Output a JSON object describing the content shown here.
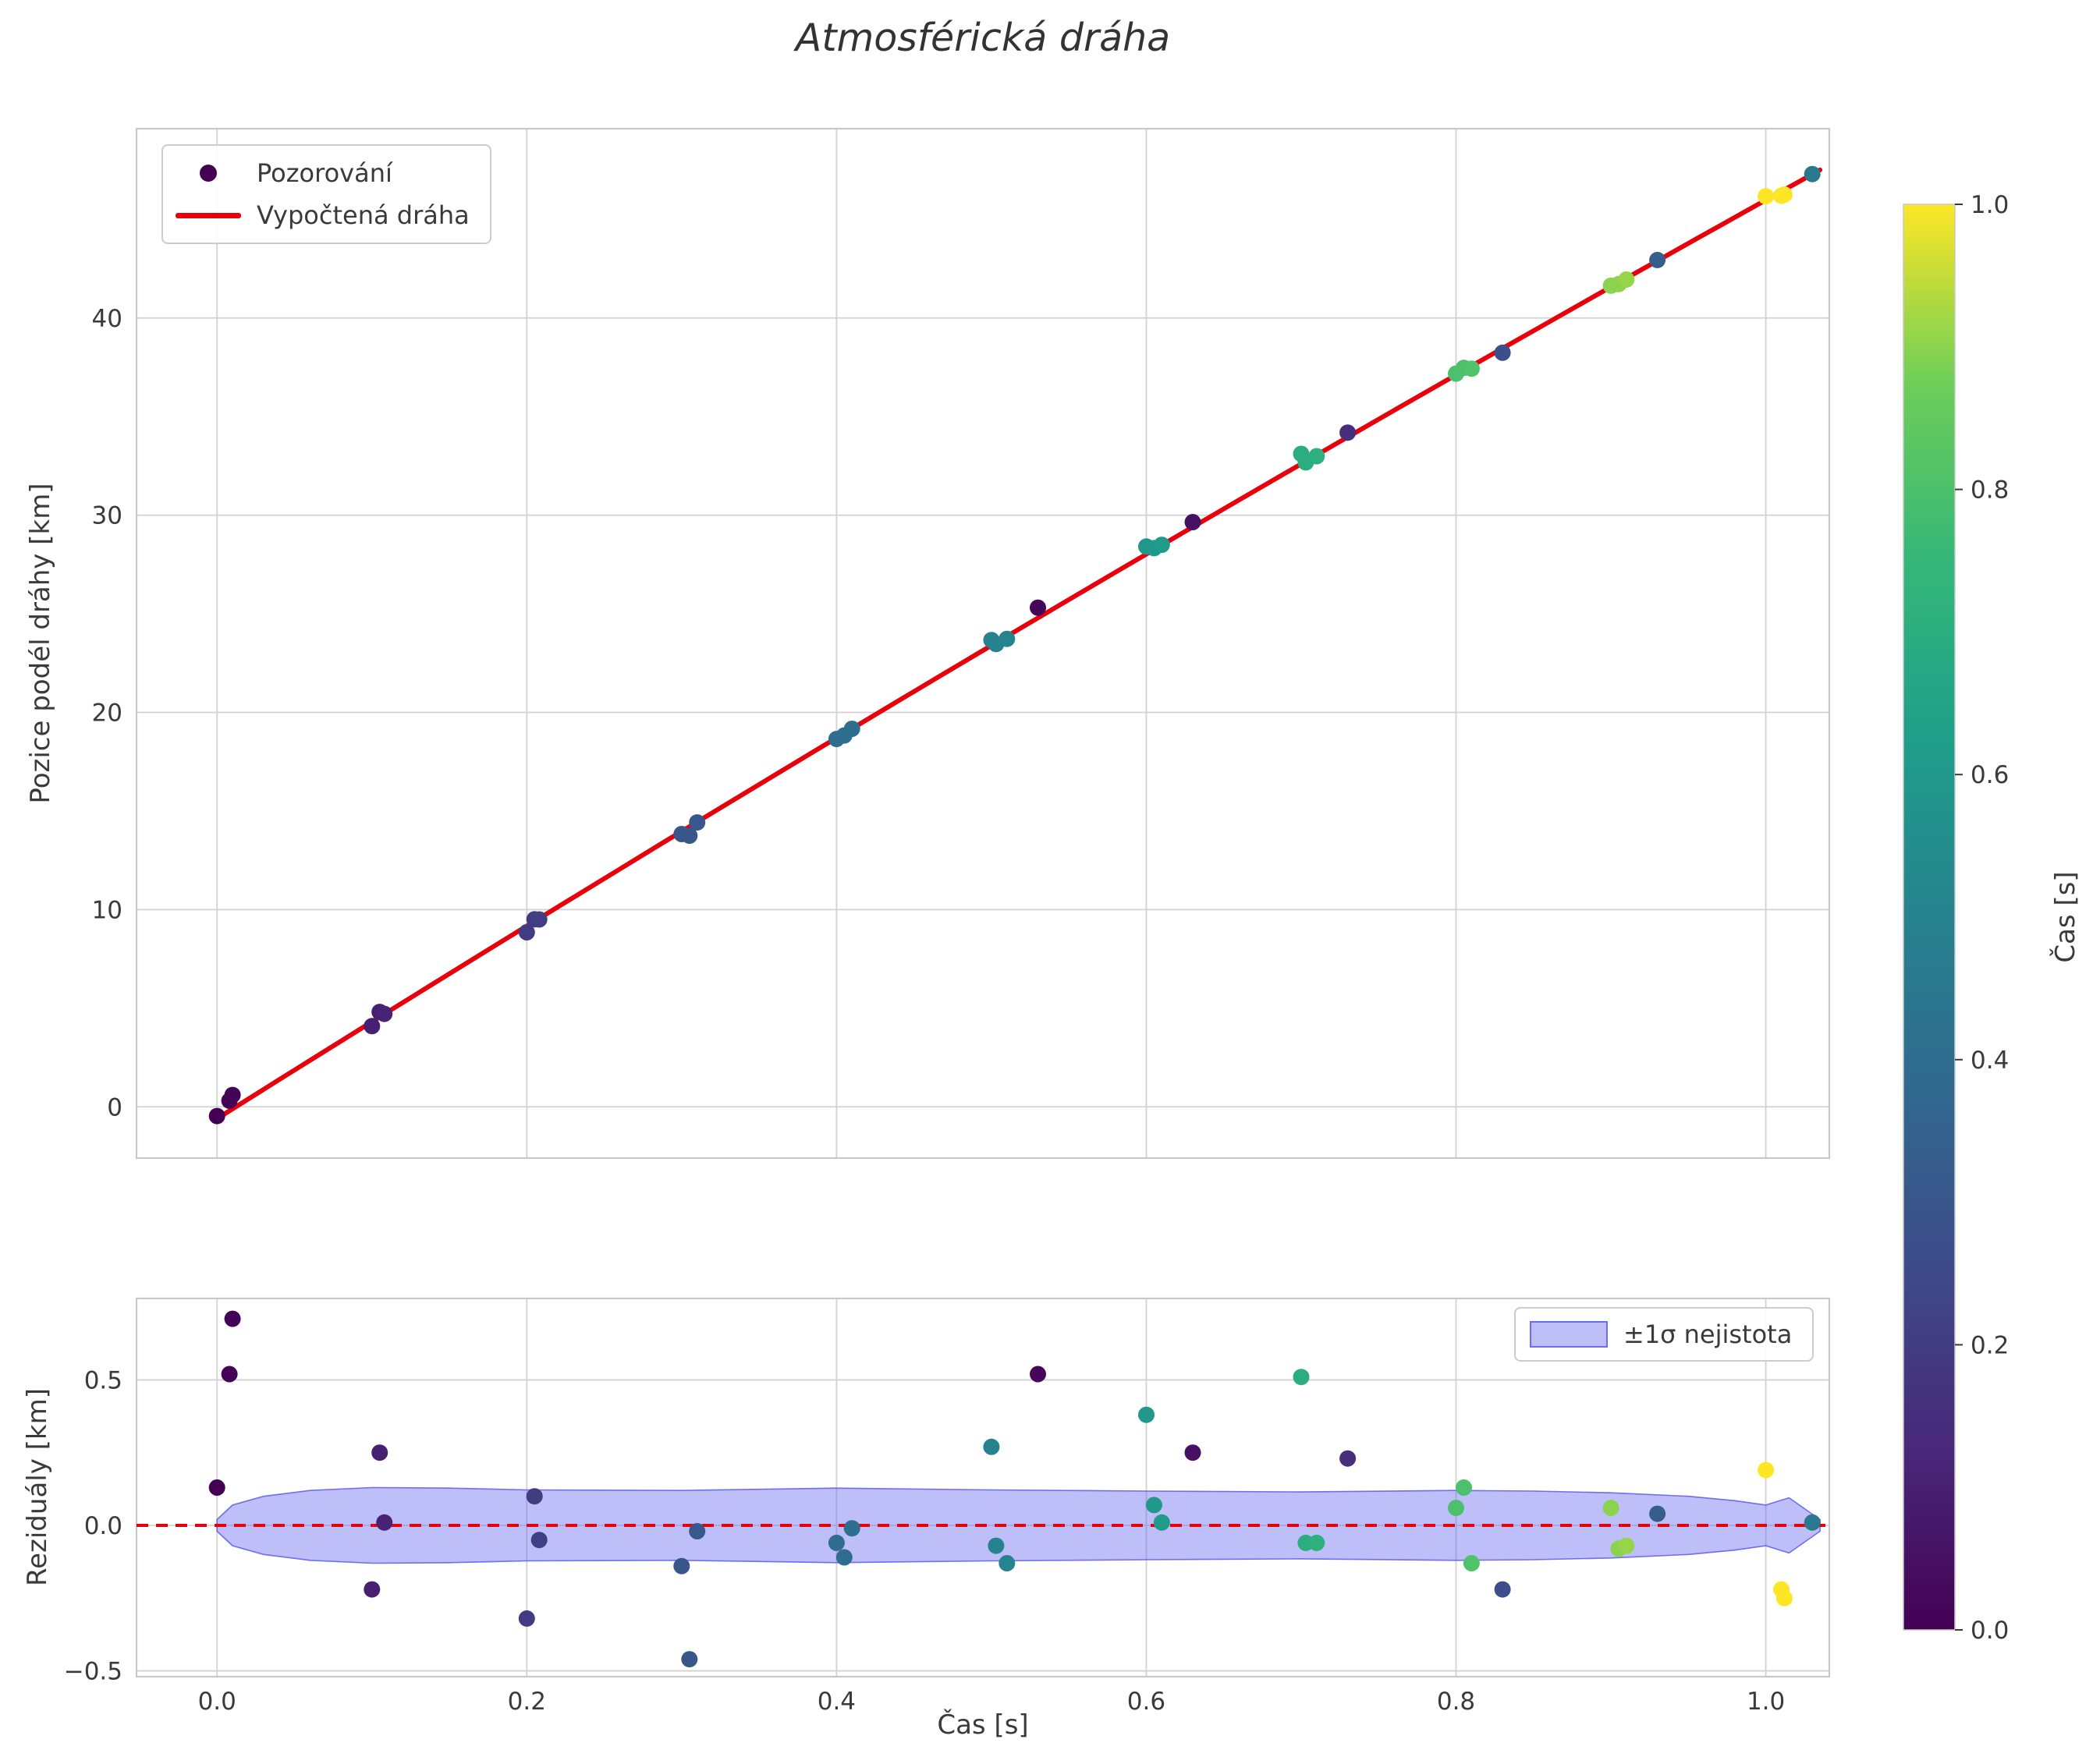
{
  "figure": {
    "background": "#ffffff"
  },
  "colors": {
    "line": "#e8000b",
    "grid": "#d2d2d2",
    "spine": "#c8c8c8",
    "text": "#3a3a3a",
    "band_fill": "rgba(99,99,240,0.42)",
    "band_edge": "rgba(99,99,240,0.9)",
    "legend_marker": "#440154",
    "viridis": [
      [
        68,
        1,
        84
      ],
      [
        72,
        40,
        120
      ],
      [
        62,
        74,
        137
      ],
      [
        49,
        104,
        142
      ],
      [
        38,
        130,
        142
      ],
      [
        31,
        158,
        137
      ],
      [
        53,
        183,
        121
      ],
      [
        110,
        206,
        88
      ],
      [
        253,
        231,
        37
      ]
    ]
  },
  "chart_data": [
    {
      "type": "scatter",
      "title": "Atmosférická dráha",
      "xlabel": "",
      "ylabel": "Pozice podél dráhy [km]",
      "xlim": [
        -0.052,
        1.041
      ],
      "ylim": [
        -2.6,
        49.6
      ],
      "grid": true,
      "xticks": {
        "values": [
          0.0,
          0.2,
          0.4,
          0.6,
          0.8,
          1.0
        ],
        "labels": [
          "",
          "",
          "",
          "",
          "",
          ""
        ]
      },
      "yticks": {
        "values": [
          0,
          10,
          20,
          30,
          40
        ],
        "labels": [
          "0",
          "10",
          "20",
          "30",
          "40"
        ]
      },
      "legend": [
        {
          "label": "Pozorování",
          "type": "marker"
        },
        {
          "label": "Vypočtená dráha",
          "type": "line"
        }
      ],
      "fit_line": {
        "name": "Vypočtená dráha",
        "model": "quadratic",
        "coeffs": [
          -0.6,
          49.4,
          -2.82
        ],
        "t_min": 0.0,
        "t_max": 1.035
      },
      "observations": [
        {
          "t": 0.0,
          "pos": -0.47,
          "resid": 0.13,
          "c": 0.0
        },
        {
          "t": 0.008,
          "pos": 0.31,
          "resid": 0.52,
          "c": 0.01
        },
        {
          "t": 0.01,
          "pos": 0.6,
          "resid": 0.71,
          "c": 0.01
        },
        {
          "t": 0.1,
          "pos": 4.09,
          "resid": -0.22,
          "c": 0.1
        },
        {
          "t": 0.105,
          "pos": 4.81,
          "resid": 0.25,
          "c": 0.1
        },
        {
          "t": 0.108,
          "pos": 4.71,
          "resid": 0.01,
          "c": 0.11
        },
        {
          "t": 0.2,
          "pos": 8.85,
          "resid": -0.32,
          "c": 0.2
        },
        {
          "t": 0.205,
          "pos": 9.51,
          "resid": 0.1,
          "c": 0.2
        },
        {
          "t": 0.208,
          "pos": 9.5,
          "resid": -0.05,
          "c": 0.21
        },
        {
          "t": 0.3,
          "pos": 13.83,
          "resid": -0.14,
          "c": 0.3
        },
        {
          "t": 0.305,
          "pos": 13.75,
          "resid": -0.46,
          "c": 0.3
        },
        {
          "t": 0.31,
          "pos": 14.42,
          "resid": -0.02,
          "c": 0.31
        },
        {
          "t": 0.4,
          "pos": 18.65,
          "resid": -0.06,
          "c": 0.4
        },
        {
          "t": 0.405,
          "pos": 18.83,
          "resid": -0.11,
          "c": 0.4
        },
        {
          "t": 0.41,
          "pos": 19.17,
          "resid": -0.01,
          "c": 0.41
        },
        {
          "t": 0.5,
          "pos": 23.67,
          "resid": 0.27,
          "c": 0.5
        },
        {
          "t": 0.503,
          "pos": 23.47,
          "resid": -0.07,
          "c": 0.5
        },
        {
          "t": 0.51,
          "pos": 23.73,
          "resid": -0.13,
          "c": 0.51
        },
        {
          "t": 0.53,
          "pos": 25.31,
          "resid": 0.52,
          "c": 0.02
        },
        {
          "t": 0.6,
          "pos": 28.41,
          "resid": 0.38,
          "c": 0.6
        },
        {
          "t": 0.605,
          "pos": 28.33,
          "resid": 0.07,
          "c": 0.6
        },
        {
          "t": 0.61,
          "pos": 28.5,
          "resid": 0.01,
          "c": 0.61
        },
        {
          "t": 0.63,
          "pos": 29.65,
          "resid": 0.25,
          "c": 0.05
        },
        {
          "t": 0.7,
          "pos": 33.11,
          "resid": 0.51,
          "c": 0.7
        },
        {
          "t": 0.703,
          "pos": 32.68,
          "resid": -0.06,
          "c": 0.7
        },
        {
          "t": 0.71,
          "pos": 32.99,
          "resid": -0.06,
          "c": 0.71
        },
        {
          "t": 0.73,
          "pos": 34.19,
          "resid": 0.23,
          "c": 0.15
        },
        {
          "t": 0.8,
          "pos": 37.18,
          "resid": 0.06,
          "c": 0.8
        },
        {
          "t": 0.805,
          "pos": 37.47,
          "resid": 0.13,
          "c": 0.8
        },
        {
          "t": 0.81,
          "pos": 37.43,
          "resid": -0.13,
          "c": 0.81
        },
        {
          "t": 0.83,
          "pos": 38.24,
          "resid": -0.22,
          "c": 0.27
        },
        {
          "t": 0.9,
          "pos": 41.64,
          "resid": 0.06,
          "c": 0.9
        },
        {
          "t": 0.905,
          "pos": 41.72,
          "resid": -0.08,
          "c": 0.9
        },
        {
          "t": 0.91,
          "pos": 41.95,
          "resid": -0.07,
          "c": 0.91
        },
        {
          "t": 0.93,
          "pos": 42.94,
          "resid": 0.04,
          "c": 0.33
        },
        {
          "t": 1.0,
          "pos": 46.17,
          "resid": 0.19,
          "c": 1.0
        },
        {
          "t": 1.01,
          "pos": 46.2,
          "resid": -0.22,
          "c": 1.0
        },
        {
          "t": 1.012,
          "pos": 46.26,
          "resid": -0.25,
          "c": 1.0
        },
        {
          "t": 1.03,
          "pos": 47.3,
          "resid": 0.01,
          "c": 0.45
        }
      ]
    },
    {
      "type": "scatter",
      "title": "",
      "xlabel": "Čas [s]",
      "ylabel": "Reziduály [km]",
      "xlim": [
        -0.052,
        1.041
      ],
      "ylim": [
        -0.52,
        0.78
      ],
      "grid": true,
      "xticks": {
        "values": [
          0.0,
          0.2,
          0.4,
          0.6,
          0.8,
          1.0
        ],
        "labels": [
          "0.0",
          "0.2",
          "0.4",
          "0.6",
          "0.8",
          "1.0"
        ]
      },
      "yticks": {
        "values": [
          -0.5,
          0.0,
          0.5
        ],
        "labels": [
          "−0.5",
          "0.0",
          "0.5"
        ]
      },
      "legend": [
        {
          "label": "±1σ nejistota",
          "type": "patch"
        }
      ],
      "zero_line": 0.0,
      "residuals_from": "chart_data[0].observations",
      "band": {
        "t": [
          0.0,
          0.01,
          0.03,
          0.06,
          0.1,
          0.15,
          0.2,
          0.3,
          0.4,
          0.5,
          0.6,
          0.7,
          0.8,
          0.85,
          0.9,
          0.95,
          0.98,
          1.0,
          1.015,
          1.035
        ],
        "sigma": [
          0.02,
          0.07,
          0.1,
          0.12,
          0.13,
          0.128,
          0.122,
          0.12,
          0.128,
          0.122,
          0.118,
          0.115,
          0.12,
          0.118,
          0.112,
          0.1,
          0.085,
          0.07,
          0.095,
          0.02
        ]
      }
    }
  ],
  "colorbar": {
    "label": "Čas [s]",
    "vmin": 0.0,
    "vmax": 1.0,
    "ticks": {
      "values": [
        0.0,
        0.2,
        0.4,
        0.6,
        0.8,
        1.0
      ],
      "labels": [
        "0.0",
        "0.2",
        "0.4",
        "0.6",
        "0.8",
        "1.0"
      ]
    }
  }
}
